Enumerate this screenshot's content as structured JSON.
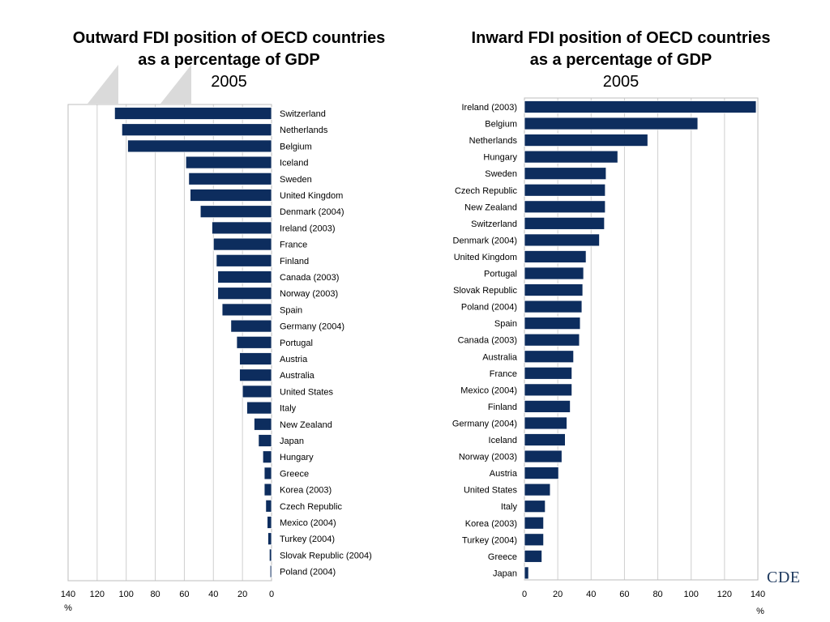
{
  "colors": {
    "bar": "#0d2d5e",
    "bar_stroke": "#ffffff",
    "grid": "#cfcfcf",
    "frame": "#bdbdbd",
    "wedge": "#dadada",
    "logo": "#1f3a5f"
  },
  "logo_text": "CDE",
  "chart_data": [
    {
      "type": "bar",
      "orientation": "horizontal",
      "title_line1": "Outward FDI position of OECD countries",
      "title_line2": "as a percentage of GDP",
      "subtitle": "2005",
      "xlabel": "%",
      "xlim": [
        0,
        140
      ],
      "x_reversed": true,
      "ticks": [
        140,
        120,
        100,
        80,
        60,
        40,
        20,
        0
      ],
      "grid": true,
      "label_position": "right",
      "categories": [
        "Switzerland",
        "Netherlands",
        "Belgium",
        "Iceland",
        "Sweden",
        "United Kingdom",
        "Denmark (2004)",
        "Ireland (2003)",
        "France",
        "Finland",
        "Canada (2003)",
        "Norway (2003)",
        "Spain",
        "Germany (2004)",
        "Portugal",
        "Austria",
        "Australia",
        "United States",
        "Italy",
        "New Zealand",
        "Japan",
        "Hungary",
        "Greece",
        "Korea (2003)",
        "Czech Republic",
        "Mexico (2004)",
        "Turkey (2004)",
        "Slovak Republic (2004)",
        "Poland (2004)"
      ],
      "values": [
        108,
        103,
        99,
        59,
        57,
        56,
        49,
        41,
        40,
        38,
        37,
        37,
        34,
        28,
        24,
        22,
        22,
        20,
        17,
        12,
        9,
        6,
        5,
        5,
        4,
        3,
        2.5,
        1.5,
        1
      ]
    },
    {
      "type": "bar",
      "orientation": "horizontal",
      "title_line1": "Inward FDI position of OECD countries",
      "title_line2": "as a percentage of GDP",
      "subtitle": "2005",
      "xlabel": "%",
      "xlim": [
        0,
        140
      ],
      "x_reversed": false,
      "ticks": [
        0,
        20,
        40,
        60,
        80,
        100,
        120,
        140
      ],
      "grid": true,
      "label_position": "left",
      "categories": [
        "Ireland (2003)",
        "Belgium",
        "Netherlands",
        "Hungary",
        "Sweden",
        "Czech Republic",
        "New Zealand",
        "Switzerland",
        "Denmark (2004)",
        "United Kingdom",
        "Portugal",
        "Slovak Republic",
        "Poland (2004)",
        "Spain",
        "Canada (2003)",
        "Australia",
        "France",
        "Mexico (2004)",
        "Finland",
        "Germany (2004)",
        "Iceland",
        "Norway (2003)",
        "Austria",
        "United States",
        "Italy",
        "Korea (2003)",
        "Turkey (2004)",
        "Greece",
        "Japan"
      ],
      "values": [
        139,
        104,
        74,
        56,
        49,
        48.5,
        48.5,
        48,
        45,
        37,
        35.5,
        35,
        34.5,
        33.5,
        33,
        29.5,
        28.5,
        28.5,
        27.5,
        25.5,
        24.5,
        22.5,
        20.5,
        15.5,
        12.5,
        11.5,
        11.5,
        10.5,
        2.5
      ]
    }
  ]
}
